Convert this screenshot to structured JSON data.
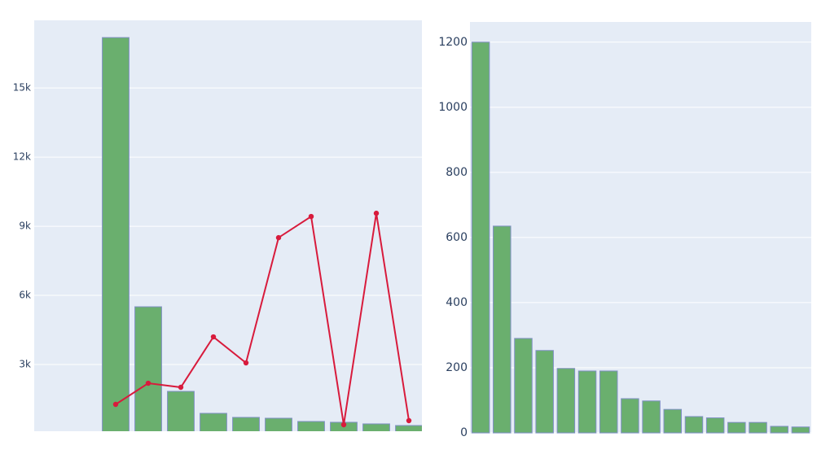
{
  "chart_data": [
    {
      "type": "bar",
      "categories": [
        null,
        null,
        null,
        null,
        null,
        null,
        null,
        null,
        null,
        null,
        null,
        null
      ],
      "series": [
        {
          "type": "bar",
          "color": "#6aaf6e",
          "values": [
            null,
            null,
            17188,
            5506,
            1835,
            882,
            706,
            670,
            529,
            494,
            424,
            353
          ]
        },
        {
          "type": "line",
          "color": "#d81b3c",
          "values": [
            null,
            null,
            1271,
            2188,
            2012,
            4200,
            3071,
            8506,
            9424,
            388,
            9565,
            565
          ]
        }
      ],
      "ylim": [
        0,
        17900
      ],
      "yticks": [
        {
          "value": 3000,
          "label": "3k"
        },
        {
          "value": 6000,
          "label": "6k"
        },
        {
          "value": 9000,
          "label": "9k"
        },
        {
          "value": 12000,
          "label": "12k"
        },
        {
          "value": 15000,
          "label": "15k"
        }
      ],
      "grid": true
    },
    {
      "type": "bar",
      "categories": [
        null,
        null,
        null,
        null,
        null,
        null,
        null,
        null,
        null,
        null,
        null,
        null,
        null,
        null,
        null,
        null
      ],
      "values": [
        1200,
        635,
        290,
        253,
        198,
        190,
        190,
        105,
        98,
        72,
        50,
        46,
        32,
        32,
        20,
        18
      ],
      "color": "#6aaf6e",
      "ylim": [
        0,
        1262
      ],
      "yticks": [
        0,
        200,
        400,
        600,
        800,
        1000,
        1200
      ],
      "grid": true
    }
  ]
}
